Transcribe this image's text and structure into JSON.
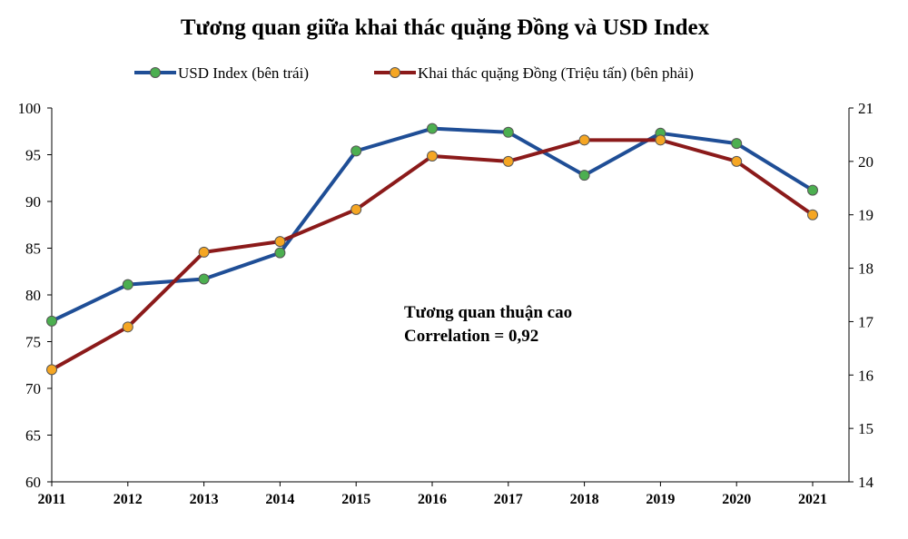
{
  "chart_data": {
    "type": "line",
    "title": "Tương quan giữa khai thác quặng Đồng và USD Index",
    "categories": [
      "2011",
      "2012",
      "2013",
      "2014",
      "2015",
      "2016",
      "2017",
      "2018",
      "2019",
      "2020",
      "2021"
    ],
    "series": [
      {
        "name": "USD Index (bên trái)",
        "axis": "left",
        "color": "#1F4E96",
        "marker_color": "#4CAF50",
        "values": [
          77.2,
          81.1,
          81.7,
          84.5,
          95.4,
          97.8,
          97.4,
          92.8,
          97.3,
          96.2,
          91.2
        ]
      },
      {
        "name": "Khai thác quặng Đồng (Triệu tấn) (bên phải)",
        "axis": "right",
        "color": "#8B1A1A",
        "marker_color": "#F5A623",
        "values": [
          16.1,
          16.9,
          18.3,
          18.5,
          19.1,
          20.1,
          20.0,
          20.4,
          20.4,
          20.0,
          19.0
        ]
      }
    ],
    "y_left": {
      "min": 60,
      "max": 100,
      "ticks": [
        "60",
        "65",
        "70",
        "75",
        "80",
        "85",
        "90",
        "95",
        "100"
      ]
    },
    "y_right": {
      "min": 14,
      "max": 21,
      "ticks": [
        "14",
        "15",
        "16",
        "17",
        "18",
        "19",
        "20",
        "21"
      ]
    },
    "grid": false,
    "legend_position": "top",
    "annotation": [
      "Tương quan thuận cao",
      "Correlation = 0,92"
    ]
  }
}
